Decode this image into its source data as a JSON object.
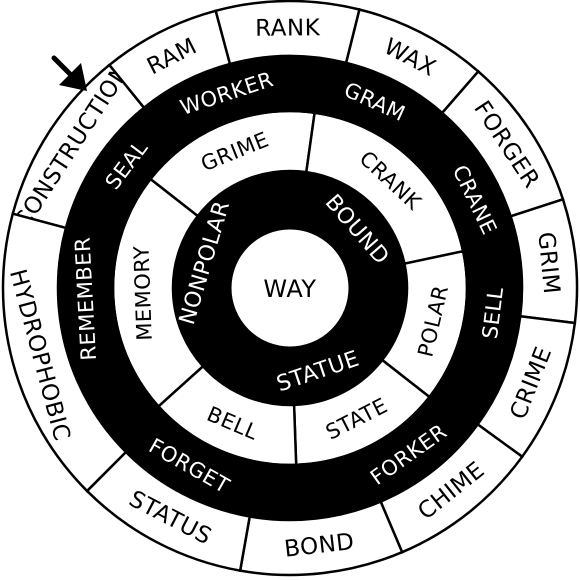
{
  "colors": {
    "ink": "#000000",
    "paper": "#ffffff"
  },
  "center_label": "WAY",
  "pointer_icon": "arrow-pointer-icon",
  "rings": [
    {
      "id": "ring-1",
      "cells": [
        {
          "label": "NONPOLAR",
          "dark": true
        },
        {
          "label": "BOUND",
          "dark": true
        },
        {
          "label": "STATUE",
          "dark": true
        }
      ]
    },
    {
      "id": "ring-2",
      "cells": [
        {
          "label": "MEMORY",
          "dark": false
        },
        {
          "label": "GRIME",
          "dark": false
        },
        {
          "label": "CRANK",
          "dark": false
        },
        {
          "label": "POLAR",
          "dark": false
        },
        {
          "label": "STATE",
          "dark": false
        },
        {
          "label": "BELL",
          "dark": false
        }
      ]
    },
    {
      "id": "ring-3",
      "cells": [
        {
          "label": "REMEMBER",
          "dark": true
        },
        {
          "label": "SEAL",
          "dark": true
        },
        {
          "label": "WORKER",
          "dark": true
        },
        {
          "label": "GRAM",
          "dark": true
        },
        {
          "label": "CRANE",
          "dark": true
        },
        {
          "label": "SELL",
          "dark": true
        },
        {
          "label": "FORKER",
          "dark": true
        },
        {
          "label": "FORGET",
          "dark": true
        }
      ]
    },
    {
      "id": "ring-4",
      "cells": [
        {
          "label": "CONSTRUCTION",
          "dark": false
        },
        {
          "label": "RAM",
          "dark": false
        },
        {
          "label": "RANK",
          "dark": false
        },
        {
          "label": "WAX",
          "dark": false
        },
        {
          "label": "FORGER",
          "dark": false
        },
        {
          "label": "GRIM",
          "dark": false
        },
        {
          "label": "CRIME",
          "dark": false
        },
        {
          "label": "CHIME",
          "dark": false
        },
        {
          "label": "BOND",
          "dark": false
        },
        {
          "label": "STATUS",
          "dark": false
        },
        {
          "label": "HYDROPHOBIC",
          "dark": false
        }
      ]
    }
  ]
}
